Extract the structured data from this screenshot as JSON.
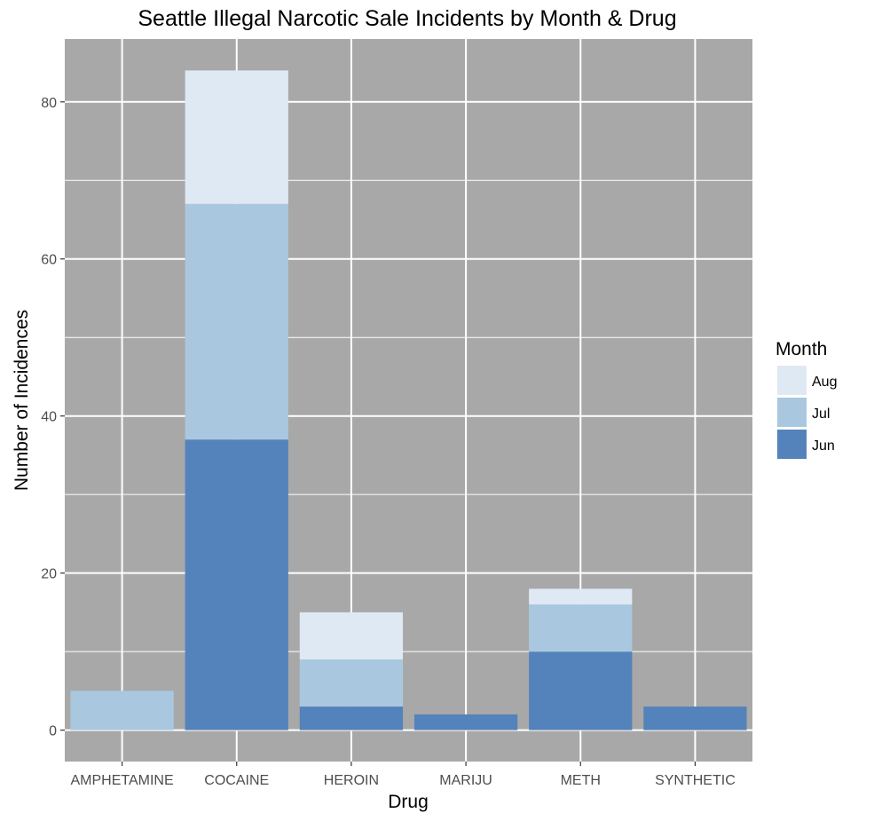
{
  "chart_data": {
    "type": "bar",
    "stacked": true,
    "title": "Seattle Illegal Narcotic Sale Incidents by Month & Drug",
    "xlabel": "Drug",
    "ylabel": "Number of Incidences",
    "categories": [
      "AMPHETAMINE",
      "COCAINE",
      "HEROIN",
      "MARIJU",
      "METH",
      "SYNTHETIC"
    ],
    "series": [
      {
        "name": "Jun",
        "color": "#5482bb",
        "values": [
          0,
          37,
          3,
          2,
          10,
          3
        ]
      },
      {
        "name": "Jul",
        "color": "#a9c8df",
        "values": [
          5,
          30,
          6,
          0,
          6,
          0
        ]
      },
      {
        "name": "Aug",
        "color": "#dfe9f4",
        "values": [
          0,
          17,
          6,
          0,
          2,
          0
        ]
      }
    ],
    "ylim": [
      -4,
      88
    ],
    "yticks": [
      0,
      20,
      40,
      60,
      80
    ],
    "grid": true,
    "panel_background": "#a8a8a8",
    "legend": {
      "title": "Month",
      "position": "right",
      "order": [
        "Aug",
        "Jul",
        "Jun"
      ]
    }
  }
}
